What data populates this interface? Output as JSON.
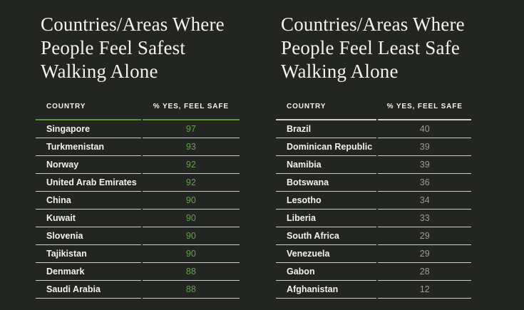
{
  "page": {
    "background": "#232522"
  },
  "chart_data": [
    {
      "type": "table",
      "title": "Countries/Areas Where People Feel Safest Walking Alone",
      "title_lines": [
        "Countries/Areas Where",
        "People Feel Safest",
        "Walking Alone"
      ],
      "columns": [
        "COUNTRY",
        "% YES, FEEL SAFE"
      ],
      "header_rule_color": "#55963a",
      "value_color": "#63a24d",
      "rows": [
        {
          "country": "Singapore",
          "value": "97"
        },
        {
          "country": "Turkmenistan",
          "value": "93"
        },
        {
          "country": "Norway",
          "value": "92"
        },
        {
          "country": "United Arab Emirates",
          "value": "92"
        },
        {
          "country": "China",
          "value": "90"
        },
        {
          "country": "Kuwait",
          "value": "90"
        },
        {
          "country": "Slovenia",
          "value": "90"
        },
        {
          "country": "Tajikistan",
          "value": "90"
        },
        {
          "country": "Denmark",
          "value": "88"
        },
        {
          "country": "Saudi Arabia",
          "value": "88"
        }
      ]
    },
    {
      "type": "table",
      "title": "Countries/Areas Where People Feel Least Safe Walking Alone",
      "title_lines": [
        "Countries/Areas Where",
        "People Feel Least Safe",
        "Walking Alone"
      ],
      "columns": [
        "COUNTRY",
        "% YES, FEEL SAFE"
      ],
      "header_rule_color": "#d0cfcc",
      "value_color": "#9c9b99",
      "rows": [
        {
          "country": "Brazil",
          "value": "40"
        },
        {
          "country": "Dominican Republic",
          "value": "39"
        },
        {
          "country": "Namibia",
          "value": "39"
        },
        {
          "country": "Botswana",
          "value": "36"
        },
        {
          "country": "Lesotho",
          "value": "34"
        },
        {
          "country": "Liberia",
          "value": "33"
        },
        {
          "country": "South Africa",
          "value": "29"
        },
        {
          "country": "Venezuela",
          "value": "29"
        },
        {
          "country": "Gabon",
          "value": "28"
        },
        {
          "country": "Afghanistan",
          "value": "12"
        }
      ]
    }
  ]
}
